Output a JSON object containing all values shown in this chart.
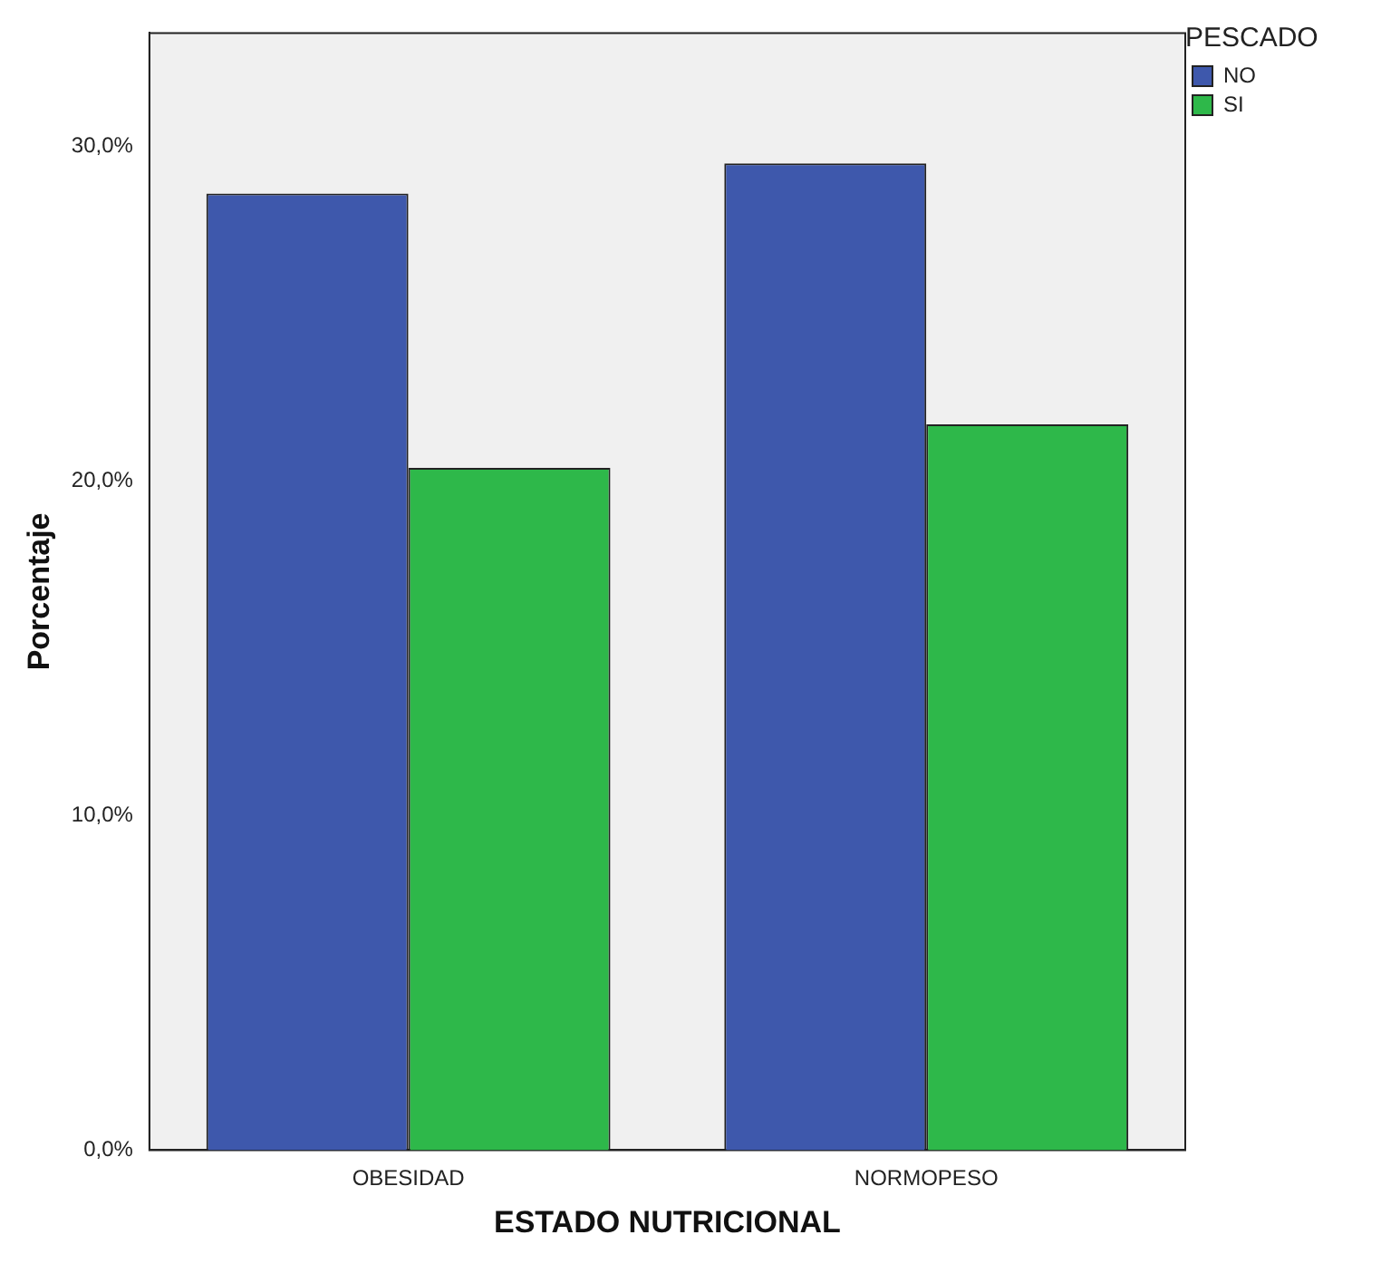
{
  "chart_data": {
    "type": "bar",
    "xlabel": "ESTADO NUTRICIONAL",
    "ylabel": "Porcentaje",
    "legend_title": "PESCADO",
    "legend": "top right",
    "grid": false,
    "categories": [
      "OBESIDAD",
      "NORMOPESO"
    ],
    "series": [
      {
        "name": "NO",
        "color": "#3e58ac",
        "values": [
          28.6,
          29.5
        ]
      },
      {
        "name": "SI",
        "color": "#2eb84a",
        "values": [
          20.4,
          21.7
        ]
      }
    ],
    "ylim": [
      0,
      33.4
    ],
    "yticks": [
      {
        "value": 0,
        "label": "0,0%"
      },
      {
        "value": 10,
        "label": "10,0%"
      },
      {
        "value": 20,
        "label": "20,0%"
      },
      {
        "value": 30,
        "label": "30,0%"
      }
    ]
  }
}
